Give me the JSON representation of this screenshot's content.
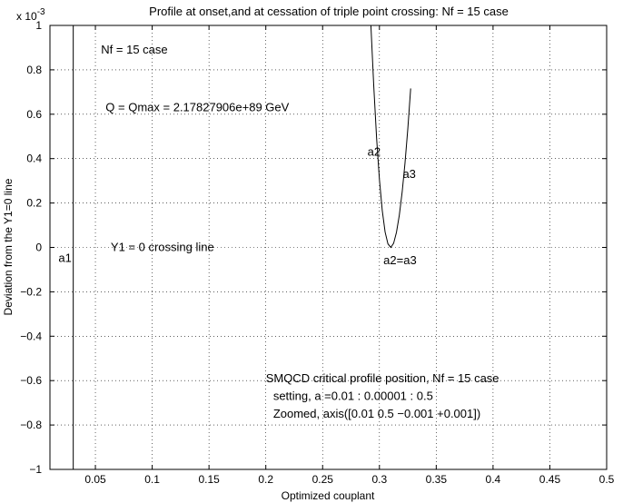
{
  "chart_data": {
    "type": "line",
    "title": "Profile at onset,and at cessation of triple point crossing: Nf = 15 case",
    "xlabel": "Optimized couplant",
    "ylabel": "Deviation from the Y1=0 line",
    "exponent_label": "x 10",
    "exponent_power": "-3",
    "xlim": [
      0.01,
      0.5
    ],
    "ylim": [
      -0.001,
      0.001
    ],
    "grid": true,
    "xticks": [
      {
        "value": 0.05,
        "label": "0.05"
      },
      {
        "value": 0.1,
        "label": "0.1"
      },
      {
        "value": 0.15,
        "label": "0.15"
      },
      {
        "value": 0.2,
        "label": "0.2"
      },
      {
        "value": 0.25,
        "label": "0.25"
      },
      {
        "value": 0.3,
        "label": "0.3"
      },
      {
        "value": 0.35,
        "label": "0.35"
      },
      {
        "value": 0.4,
        "label": "0.4"
      },
      {
        "value": 0.45,
        "label": "0.45"
      },
      {
        "value": 0.5,
        "label": "0.5"
      }
    ],
    "yticks": [
      {
        "value": -0.001,
        "label": "−1"
      },
      {
        "value": -0.0008,
        "label": "−0.8"
      },
      {
        "value": -0.0006,
        "label": "−0.6"
      },
      {
        "value": -0.0004,
        "label": "−0.4"
      },
      {
        "value": -0.0002,
        "label": "−0.2"
      },
      {
        "value": 0,
        "label": "0"
      },
      {
        "value": 0.0002,
        "label": "0.2"
      },
      {
        "value": 0.0004,
        "label": "0.4"
      },
      {
        "value": 0.0006,
        "label": "0.6"
      },
      {
        "value": 0.0008,
        "label": "0.8"
      },
      {
        "value": 0.001,
        "label": "1"
      }
    ],
    "series": [
      {
        "x": [
          0.0305,
          0.0305
        ],
        "y": [
          -0.001,
          0.001
        ]
      },
      {
        "x": [
          0.2925,
          0.295,
          0.2975,
          0.3,
          0.3025,
          0.305,
          0.3075,
          0.31,
          0.3125,
          0.315,
          0.3175,
          0.32,
          0.3225,
          0.325,
          0.3275
        ],
        "y": [
          0.001,
          0.000728,
          0.000493,
          0.000306,
          0.000166,
          6.93e-05,
          1.59e-05,
          0,
          1.86e-05,
          6.81e-05,
          0.000145,
          0.000249,
          0.000379,
          0.000535,
          0.000716
        ]
      }
    ],
    "annotations": [
      {
        "text": "Nf = 15 case",
        "x": 0.055,
        "y": 0.00089
      },
      {
        "text": "Q = Qmax = 2.17827906e+89 GeV",
        "x": 0.059,
        "y": 0.00063
      },
      {
        "text": "a2",
        "x": 0.2895,
        "y": 0.00043
      },
      {
        "text": "a3",
        "x": 0.3205,
        "y": 0.00033
      },
      {
        "text": "a1",
        "x": 0.0175,
        "y": -5e-05
      },
      {
        "text": "Y1 = 0 crossing line",
        "x": 0.0635,
        "y": 0.0
      },
      {
        "text": "a2=a3",
        "x": 0.3035,
        "y": -6e-05
      },
      {
        "text": "SMQCD critical profile position, Nf = 15 case",
        "x": 0.2,
        "y": -0.00059
      },
      {
        "text": "setting, a =0.01 : 0.00001 : 0.5",
        "x": 0.2065,
        "y": -0.00067
      },
      {
        "text": "Zoomed, axis([0.01 0.5 −0.001 +0.001])",
        "x": 0.2065,
        "y": -0.00075
      }
    ]
  }
}
